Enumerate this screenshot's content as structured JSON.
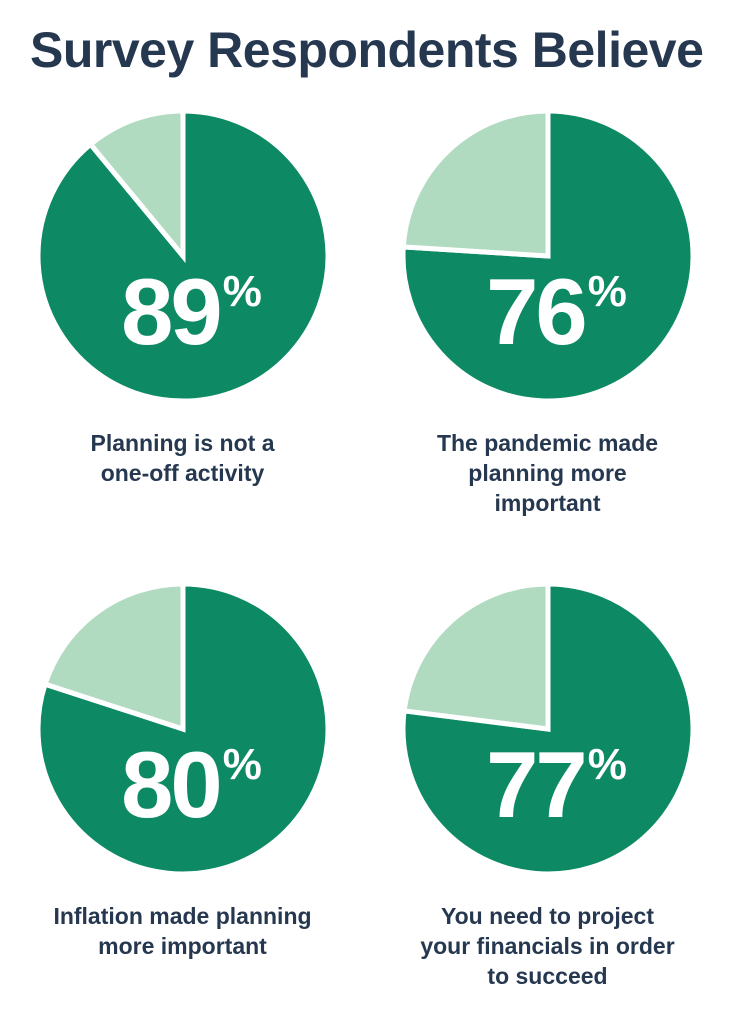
{
  "page": {
    "title": "Survey Respondents Believe"
  },
  "colors": {
    "background": "#ffffff",
    "heading_text": "#263850",
    "caption_text": "#263850",
    "value_text": "#ffffff",
    "pie_main_green": "#0D8A63",
    "pie_light_green": "#B1DBC1",
    "slice_gap": "#ffffff"
  },
  "chart_data": [
    {
      "type": "pie",
      "title": "Planning is not a one-off activity",
      "caption_lines": [
        "Planning is not a",
        "one-off activity"
      ],
      "value": 89,
      "unit": "%",
      "values": [
        89,
        11
      ],
      "slice_colors": [
        "#0D8A63",
        "#B1DBC1"
      ],
      "start_angle_deg": 0,
      "direction": "clockwise",
      "legend_position": "none"
    },
    {
      "type": "pie",
      "title": "The pandemic made planning more important",
      "caption_lines": [
        "The pandemic made",
        "planning more",
        "important"
      ],
      "value": 76,
      "unit": "%",
      "values": [
        76,
        24
      ],
      "slice_colors": [
        "#0D8A63",
        "#B1DBC1"
      ],
      "start_angle_deg": 0,
      "direction": "clockwise",
      "legend_position": "none"
    },
    {
      "type": "pie",
      "title": "Inflation made planning more important",
      "caption_lines": [
        "Inflation made planning",
        "more important"
      ],
      "value": 80,
      "unit": "%",
      "values": [
        80,
        20
      ],
      "slice_colors": [
        "#0D8A63",
        "#B1DBC1"
      ],
      "start_angle_deg": 0,
      "direction": "clockwise",
      "legend_position": "none"
    },
    {
      "type": "pie",
      "title": "You need to project your financials in order to succeed",
      "caption_lines": [
        "You need to project",
        "your financials in order",
        "to succeed"
      ],
      "value": 77,
      "unit": "%",
      "values": [
        77,
        23
      ],
      "slice_colors": [
        "#0D8A63",
        "#B1DBC1"
      ],
      "start_angle_deg": 0,
      "direction": "clockwise",
      "legend_position": "none"
    }
  ]
}
